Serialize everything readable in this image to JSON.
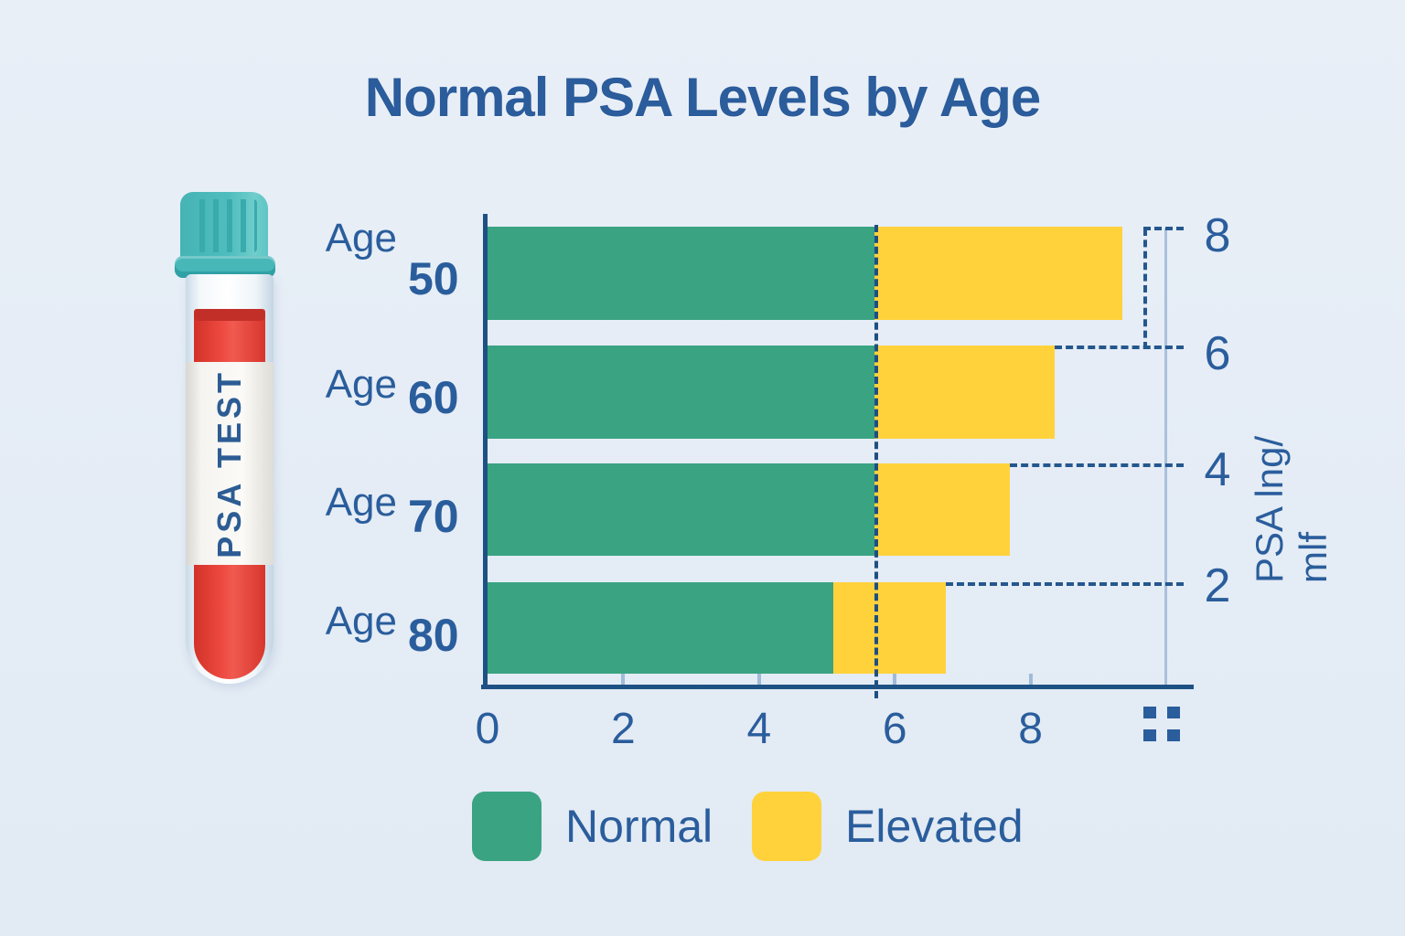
{
  "title": "Normal PSA Levels by Age",
  "test_tube": {
    "label": "PSA TEST"
  },
  "chart_data": {
    "type": "bar",
    "orientation": "horizontal",
    "stacked": true,
    "title": "Normal PSA Levels by Age",
    "categories": [
      "Age 50",
      "Age 60",
      "Age 70",
      "Age 80"
    ],
    "category_prefix": "Age",
    "category_values": [
      "50",
      "60",
      "70",
      "80"
    ],
    "series": [
      {
        "name": "Normal",
        "color": "#3aa382",
        "values": [
          5.7,
          5.7,
          5.7,
          5.1
        ]
      },
      {
        "name": "Elevated",
        "color": "#ffd23c",
        "values": [
          3.65,
          2.65,
          2.0,
          1.65
        ]
      }
    ],
    "stack_totals": [
      9.35,
      8.35,
      7.7,
      6.75
    ],
    "x_axis": {
      "ticks": [
        {
          "label": "0",
          "value": 0
        },
        {
          "label": "2",
          "value": 2
        },
        {
          "label": "4",
          "value": 4
        },
        {
          "label": "6",
          "value": 6
        },
        {
          "label": "8",
          "value": 8
        }
      ],
      "max_value": 10,
      "last_tick_glyph": "2x2-squares"
    },
    "right_axis": {
      "title": "PSA lng/ mlf",
      "tick_labels": [
        "8",
        "6",
        "4",
        "2"
      ]
    },
    "threshold_value": 5.75,
    "legend": [
      {
        "label": "Normal",
        "color": "#3aa382"
      },
      {
        "label": "Elevated",
        "color": "#ffd23c"
      }
    ],
    "legend_position": "bottom",
    "grid": false
  },
  "colors": {
    "background": "#e6edf5",
    "text": "#2b5c9b",
    "normal": "#3aa382",
    "elevated": "#ffd23c",
    "axis": "#1d5184",
    "dashed": "#24578e",
    "minor_tick": "#9fbbd8",
    "right_axis_line": "#a9c2dc",
    "tube_cap": "#4dbcbc",
    "blood": "#e23c33"
  }
}
